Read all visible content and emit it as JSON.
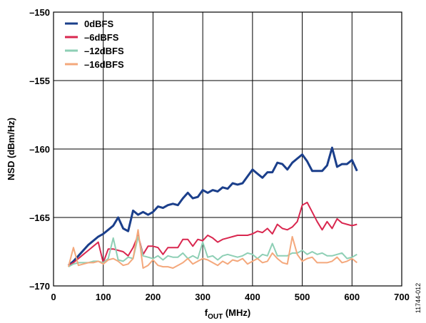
{
  "chart_data": {
    "type": "line",
    "xlabel_main": "f",
    "xlabel_sub": "OUT",
    "xlabel_unit": " (MHz)",
    "ylabel": "NSD (dBm/Hz)",
    "xlim": [
      0,
      700
    ],
    "ylim": [
      -170,
      -150
    ],
    "xticks": [
      "0",
      "100",
      "200",
      "300",
      "400",
      "500",
      "600",
      "700"
    ],
    "yticks": [
      "–150",
      "–155",
      "–160",
      "–165",
      "–170"
    ],
    "grid": true,
    "legend_position": "top-left",
    "figure_id": "11744-012",
    "series": [
      {
        "name": "0dBFS",
        "color": "#1b3f8b",
        "x": [
          30,
          40,
          50,
          60,
          70,
          80,
          90,
          100,
          110,
          120,
          130,
          140,
          150,
          160,
          170,
          180,
          190,
          200,
          210,
          220,
          230,
          240,
          250,
          260,
          270,
          280,
          290,
          300,
          310,
          320,
          330,
          340,
          350,
          360,
          370,
          380,
          390,
          400,
          410,
          420,
          430,
          440,
          450,
          460,
          470,
          480,
          490,
          500,
          510,
          520,
          530,
          540,
          550,
          560,
          570,
          580,
          590,
          600,
          610
        ],
        "values": [
          -168.5,
          -168.2,
          -167.8,
          -167.4,
          -167.0,
          -166.7,
          -166.4,
          -166.2,
          -165.9,
          -165.6,
          -165.0,
          -165.8,
          -166.0,
          -164.5,
          -164.8,
          -164.6,
          -164.8,
          -164.6,
          -164.2,
          -164.3,
          -164.1,
          -164.0,
          -164.1,
          -163.6,
          -163.2,
          -163.6,
          -163.5,
          -163.0,
          -163.2,
          -163.0,
          -163.1,
          -162.8,
          -162.9,
          -162.5,
          -162.6,
          -162.5,
          -162.0,
          -161.5,
          -161.8,
          -162.1,
          -161.7,
          -161.7,
          -161.0,
          -161.1,
          -161.5,
          -161.0,
          -160.7,
          -160.4,
          -160.9,
          -161.6,
          -161.6,
          -161.6,
          -161.2,
          -159.9,
          -161.3,
          -161.1,
          -161.1,
          -160.8,
          -161.6
        ]
      },
      {
        "name": "–6dBFS",
        "color": "#d9274f",
        "x": [
          30,
          40,
          50,
          60,
          70,
          80,
          90,
          100,
          110,
          120,
          130,
          140,
          150,
          160,
          170,
          180,
          190,
          200,
          210,
          220,
          230,
          240,
          250,
          260,
          270,
          280,
          290,
          300,
          310,
          320,
          330,
          340,
          350,
          360,
          370,
          380,
          390,
          400,
          410,
          420,
          430,
          440,
          450,
          460,
          470,
          480,
          490,
          500,
          510,
          520,
          530,
          540,
          550,
          560,
          570,
          580,
          590,
          600,
          610
        ],
        "values": [
          -168.5,
          -168.3,
          -168.0,
          -167.7,
          -167.4,
          -167.1,
          -166.8,
          -168.3,
          -167.3,
          -167.3,
          -167.4,
          -167.5,
          -167.8,
          -167.2,
          -166.3,
          -167.7,
          -167.1,
          -167.1,
          -167.2,
          -167.7,
          -167.2,
          -167.2,
          -167.2,
          -166.6,
          -166.6,
          -167.1,
          -166.6,
          -166.7,
          -166.3,
          -166.5,
          -166.8,
          -166.6,
          -166.5,
          -166.4,
          -166.3,
          -166.3,
          -166.3,
          -166.2,
          -166.0,
          -166.1,
          -165.8,
          -166.2,
          -165.5,
          -165.8,
          -165.9,
          -165.7,
          -165.3,
          -164.1,
          -163.9,
          -164.6,
          -165.3,
          -165.9,
          -165.3,
          -165.8,
          -165.1,
          -165.4,
          -165.5,
          -165.6,
          -165.5
        ]
      },
      {
        "name": "–12dBFS",
        "color": "#8ecfb5",
        "x": [
          30,
          40,
          50,
          60,
          70,
          80,
          90,
          100,
          110,
          120,
          130,
          140,
          150,
          160,
          170,
          180,
          190,
          200,
          210,
          220,
          230,
          240,
          250,
          260,
          270,
          280,
          290,
          300,
          310,
          320,
          330,
          340,
          350,
          360,
          370,
          380,
          390,
          400,
          410,
          420,
          430,
          440,
          450,
          460,
          470,
          480,
          490,
          500,
          510,
          520,
          530,
          540,
          550,
          560,
          570,
          580,
          590,
          600,
          610
        ],
        "values": [
          -168.6,
          -168.4,
          -168.3,
          -168.3,
          -168.3,
          -168.2,
          -168.2,
          -168.3,
          -168.0,
          -166.5,
          -168.1,
          -168.2,
          -167.9,
          -168.0,
          -166.4,
          -167.8,
          -167.9,
          -168.0,
          -167.8,
          -168.1,
          -167.8,
          -167.9,
          -167.9,
          -167.6,
          -168.0,
          -167.8,
          -168.0,
          -166.8,
          -167.9,
          -167.8,
          -168.1,
          -167.8,
          -167.7,
          -167.8,
          -167.9,
          -167.8,
          -167.6,
          -167.7,
          -168.0,
          -167.7,
          -167.8,
          -166.9,
          -167.8,
          -167.8,
          -167.8,
          -167.6,
          -167.6,
          -167.4,
          -167.7,
          -167.5,
          -167.7,
          -167.6,
          -167.8,
          -167.8,
          -167.7,
          -167.6,
          -168.0,
          -167.9,
          -167.7
        ]
      },
      {
        "name": "–16dBFS",
        "color": "#f4a87c",
        "x": [
          30,
          40,
          50,
          60,
          70,
          80,
          90,
          100,
          110,
          120,
          130,
          140,
          150,
          160,
          170,
          180,
          190,
          200,
          210,
          220,
          230,
          240,
          250,
          260,
          270,
          280,
          290,
          300,
          310,
          320,
          330,
          340,
          350,
          360,
          370,
          380,
          390,
          400,
          410,
          420,
          430,
          440,
          450,
          460,
          470,
          480,
          490,
          500,
          510,
          520,
          530,
          540,
          550,
          560,
          570,
          580,
          590,
          600,
          610
        ],
        "values": [
          -168.6,
          -167.2,
          -168.5,
          -168.4,
          -168.3,
          -168.3,
          -168.2,
          -168.4,
          -168.1,
          -168.0,
          -168.2,
          -168.5,
          -168.4,
          -168.0,
          -165.9,
          -168.7,
          -168.5,
          -168.1,
          -168.5,
          -168.6,
          -168.6,
          -168.7,
          -168.5,
          -168.3,
          -168.0,
          -168.4,
          -168.2,
          -168.0,
          -168.1,
          -168.3,
          -168.5,
          -168.2,
          -168.4,
          -168.1,
          -168.2,
          -168.0,
          -168.4,
          -168.2,
          -168.0,
          -168.3,
          -168.2,
          -167.6,
          -168.0,
          -168.3,
          -168.4,
          -166.4,
          -167.7,
          -168.2,
          -168.0,
          -167.9,
          -168.3,
          -168.3,
          -168.3,
          -168.2,
          -167.9,
          -168.3,
          -168.2,
          -168.0,
          -168.3
        ]
      }
    ]
  }
}
